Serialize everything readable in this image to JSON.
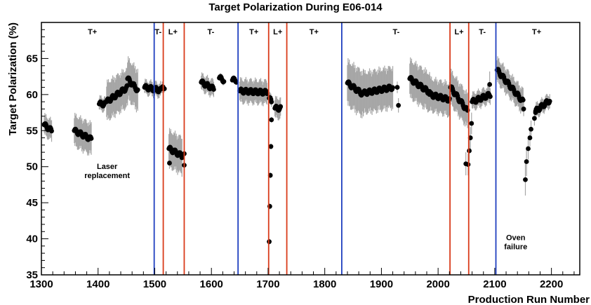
{
  "chart_data": {
    "type": "scatter",
    "title": "Target Polarization During E06-014",
    "xlabel": "Production Run Number",
    "ylabel": "Target Polarization (%)",
    "xlim": [
      1300,
      2250
    ],
    "ylim": [
      35,
      70
    ],
    "xticks": [
      1300,
      1400,
      1500,
      1600,
      1700,
      1800,
      1900,
      2000,
      2100,
      2200
    ],
    "yticks": [
      35,
      40,
      45,
      50,
      55,
      60,
      65
    ],
    "grid": false,
    "regions": [
      {
        "label": "T+",
        "x": 1390
      },
      {
        "label": "T-",
        "x": 1506
      },
      {
        "label": "L+",
        "x": 1532
      },
      {
        "label": "T-",
        "x": 1599
      },
      {
        "label": "T+",
        "x": 1675
      },
      {
        "label": "L+",
        "x": 1717
      },
      {
        "label": "T+",
        "x": 1781
      },
      {
        "label": "T-",
        "x": 1926
      },
      {
        "label": "L+",
        "x": 2037
      },
      {
        "label": "T-",
        "x": 2078
      },
      {
        "label": "T+",
        "x": 2174
      }
    ],
    "vlines": [
      {
        "x": 1499,
        "color": "#1f3fbf"
      },
      {
        "x": 1515,
        "color": "#d93b1a"
      },
      {
        "x": 1552,
        "color": "#d93b1a"
      },
      {
        "x": 1647,
        "color": "#1f3fbf"
      },
      {
        "x": 1701,
        "color": "#d93b1a"
      },
      {
        "x": 1733,
        "color": "#d93b1a"
      },
      {
        "x": 1830,
        "color": "#1f3fbf"
      },
      {
        "x": 2021,
        "color": "#d93b1a"
      },
      {
        "x": 2054,
        "color": "#d93b1a"
      },
      {
        "x": 2102,
        "color": "#1f3fbf"
      }
    ],
    "annotations": [
      {
        "lines": [
          "Laser",
          "replacement"
        ],
        "x": 1416,
        "y": 49.7
      },
      {
        "lines": [
          "Oven",
          "failure"
        ],
        "x": 2137,
        "y": 39.8
      }
    ],
    "segments": [
      {
        "x0": 1305,
        "x1": 1318,
        "y0": 55.8,
        "y1": 55.0,
        "err": 1.5
      },
      {
        "x0": 1358,
        "x1": 1388,
        "y0": 55.0,
        "y1": 53.8,
        "err": 2.3
      },
      {
        "x0": 1402,
        "x1": 1412,
        "y0": 58.7,
        "y1": 58.7,
        "err": 1.0
      },
      {
        "x0": 1415,
        "x1": 1452,
        "y0": 59.0,
        "y1": 61.0,
        "err": 2.8
      },
      {
        "x0": 1452,
        "x1": 1470,
        "y0": 62.2,
        "y1": 60.6,
        "err": 3.0
      },
      {
        "x0": 1482,
        "x1": 1510,
        "y0": 61.0,
        "y1": 60.6,
        "err": 1.0
      },
      {
        "x0": 1512,
        "x1": 1515,
        "y0": 60.8,
        "y1": 60.8,
        "err": 0.8
      },
      {
        "x0": 1525,
        "x1": 1548,
        "y0": 52.5,
        "y1": 51.5,
        "err": 2.7
      },
      {
        "x0": 1582,
        "x1": 1604,
        "y0": 61.7,
        "y1": 60.8,
        "err": 1.2
      },
      {
        "x0": 1614,
        "x1": 1622,
        "y0": 62.3,
        "y1": 62.0,
        "err": 0.5
      },
      {
        "x0": 1637,
        "x1": 1644,
        "y0": 62.0,
        "y1": 62.0,
        "err": 0.4
      },
      {
        "x0": 1650,
        "x1": 1698,
        "y0": 60.5,
        "y1": 60.3,
        "err": 1.7
      },
      {
        "x0": 1702,
        "x1": 1706,
        "y0": 59.5,
        "y1": 59.0,
        "err": 0.8
      },
      {
        "x0": 1712,
        "x1": 1722,
        "y0": 58.1,
        "y1": 58.1,
        "err": 1.5
      },
      {
        "x0": 1840,
        "x1": 1868,
        "y0": 61.6,
        "y1": 60.0,
        "err": 3.3
      },
      {
        "x0": 1868,
        "x1": 1920,
        "y0": 60.2,
        "y1": 61.0,
        "err": 3.0
      },
      {
        "x0": 1950,
        "x1": 1985,
        "y0": 62.2,
        "y1": 60.3,
        "err": 2.8
      },
      {
        "x0": 1985,
        "x1": 2020,
        "y0": 60.0,
        "y1": 59.3,
        "err": 2.4
      },
      {
        "x0": 2022,
        "x1": 2052,
        "y0": 61.0,
        "y1": 57.7,
        "err": 2.5
      },
      {
        "x0": 2060,
        "x1": 2092,
        "y0": 59.0,
        "y1": 60.0,
        "err": 1.2
      },
      {
        "x0": 2104,
        "x1": 2150,
        "y0": 63.4,
        "y1": 59.0,
        "err": 1.8
      },
      {
        "x0": 2172,
        "x1": 2197,
        "y0": 57.7,
        "y1": 59.2,
        "err": 1.0
      }
    ],
    "points": [
      {
        "x": 1930,
        "y": 58.5,
        "err": 1.0
      },
      {
        "x": 1928,
        "y": 61.0,
        "err": 0.8
      },
      {
        "x": 1517,
        "y": 60.8,
        "err": 0.5
      },
      {
        "x": 1526,
        "y": 50.5,
        "err": 0.8
      },
      {
        "x": 1552,
        "y": 51.8,
        "err": 0.8
      },
      {
        "x": 1552,
        "y": 50.2,
        "err": 0.8
      },
      {
        "x": 1702,
        "y": 39.6,
        "err": 0.4
      },
      {
        "x": 1703,
        "y": 44.5,
        "err": 0.4
      },
      {
        "x": 1704,
        "y": 48.8,
        "err": 0.4
      },
      {
        "x": 1705,
        "y": 52.8,
        "err": 0.4
      },
      {
        "x": 1706,
        "y": 56.5,
        "err": 0.4
      },
      {
        "x": 2049,
        "y": 50.4,
        "err": 1.6
      },
      {
        "x": 2053,
        "y": 50.3,
        "err": 1.5
      },
      {
        "x": 2055,
        "y": 52.2,
        "err": 1.5
      },
      {
        "x": 2057,
        "y": 54.0,
        "err": 1.5
      },
      {
        "x": 2059,
        "y": 56.0,
        "err": 1.5
      },
      {
        "x": 2091,
        "y": 61.4,
        "err": 1.8
      },
      {
        "x": 2151,
        "y": 58.0,
        "err": 1.0
      },
      {
        "x": 2154,
        "y": 48.2,
        "err": 2.2
      },
      {
        "x": 2156,
        "y": 50.7,
        "err": 2.0
      },
      {
        "x": 2159,
        "y": 52.5,
        "err": 1.5
      },
      {
        "x": 2162,
        "y": 54.0,
        "err": 1.2
      },
      {
        "x": 2164,
        "y": 55.2,
        "err": 1.2
      },
      {
        "x": 2170,
        "y": 56.7,
        "err": 1.0
      },
      {
        "x": 2172,
        "y": 57.5,
        "err": 1.0
      }
    ],
    "colors": {
      "marker": "#000000",
      "errorbar": "#a6a6a6",
      "blue_line": "#1f3fbf",
      "red_line": "#d93b1a"
    }
  }
}
